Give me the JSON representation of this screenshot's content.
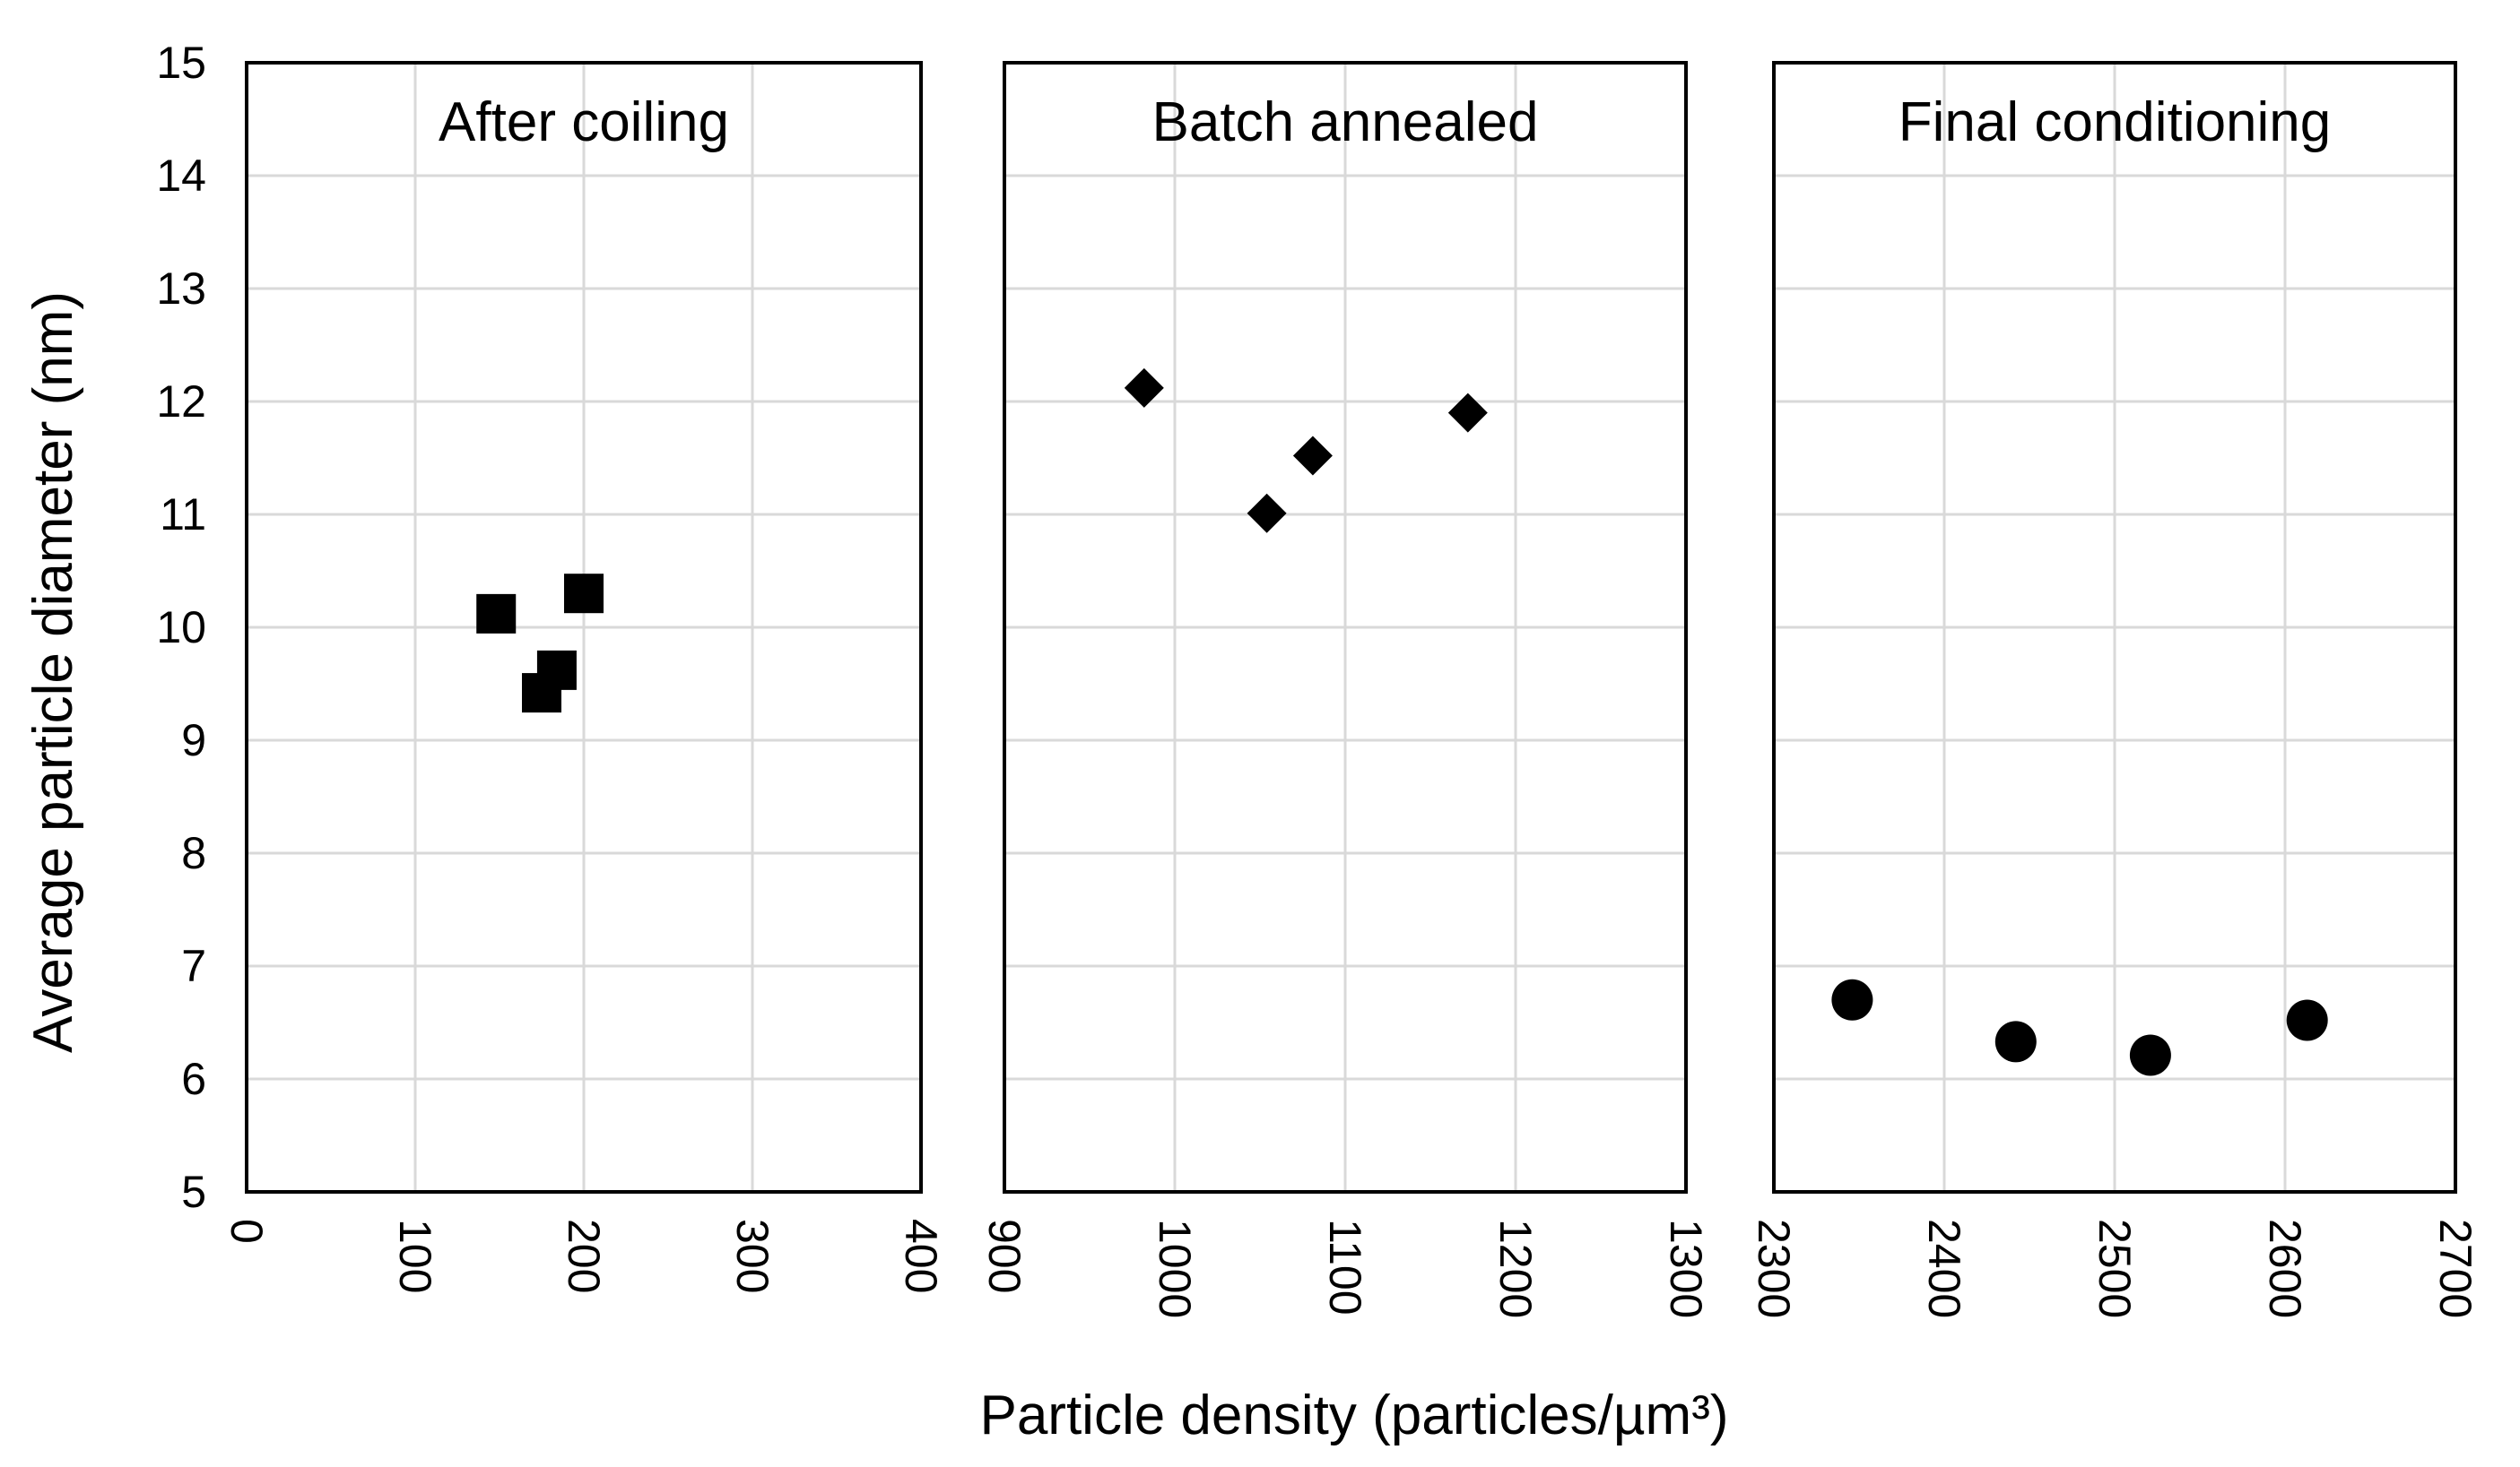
{
  "chart_data": {
    "type": "scatter",
    "shared_y_axis": {
      "label": "Average particle diameter (nm)",
      "ylim": [
        5,
        15
      ],
      "ticks": [
        "5",
        "6",
        "7",
        "8",
        "9",
        "10",
        "11",
        "12",
        "13",
        "14",
        "15"
      ]
    },
    "xlabel": "Particle density (particles/µm³)",
    "grid": true,
    "panels": [
      {
        "title": "After coiling",
        "marker": "square",
        "xlim": [
          0,
          400
        ],
        "xticks": [
          "0",
          "100",
          "200",
          "300",
          "400"
        ],
        "points": [
          {
            "x": 148,
            "y": 10.12
          },
          {
            "x": 200,
            "y": 10.3
          },
          {
            "x": 184,
            "y": 9.62
          },
          {
            "x": 175,
            "y": 9.42
          }
        ]
      },
      {
        "title": "Batch annealed",
        "marker": "diamond",
        "xlim": [
          900,
          1300
        ],
        "xticks": [
          "900",
          "1000",
          "1100",
          "1200",
          "1300"
        ],
        "points": [
          {
            "x": 982,
            "y": 12.12
          },
          {
            "x": 1172,
            "y": 11.9
          },
          {
            "x": 1081,
            "y": 11.52
          },
          {
            "x": 1054,
            "y": 11.01
          }
        ]
      },
      {
        "title": "Final conditioning",
        "marker": "circle",
        "xlim": [
          2300,
          2700
        ],
        "xticks": [
          "2300",
          "2400",
          "2500",
          "2600",
          "2700"
        ],
        "points": [
          {
            "x": 2346,
            "y": 6.7
          },
          {
            "x": 2442,
            "y": 6.33
          },
          {
            "x": 2521,
            "y": 6.21
          },
          {
            "x": 2613,
            "y": 6.52
          }
        ]
      }
    ]
  }
}
